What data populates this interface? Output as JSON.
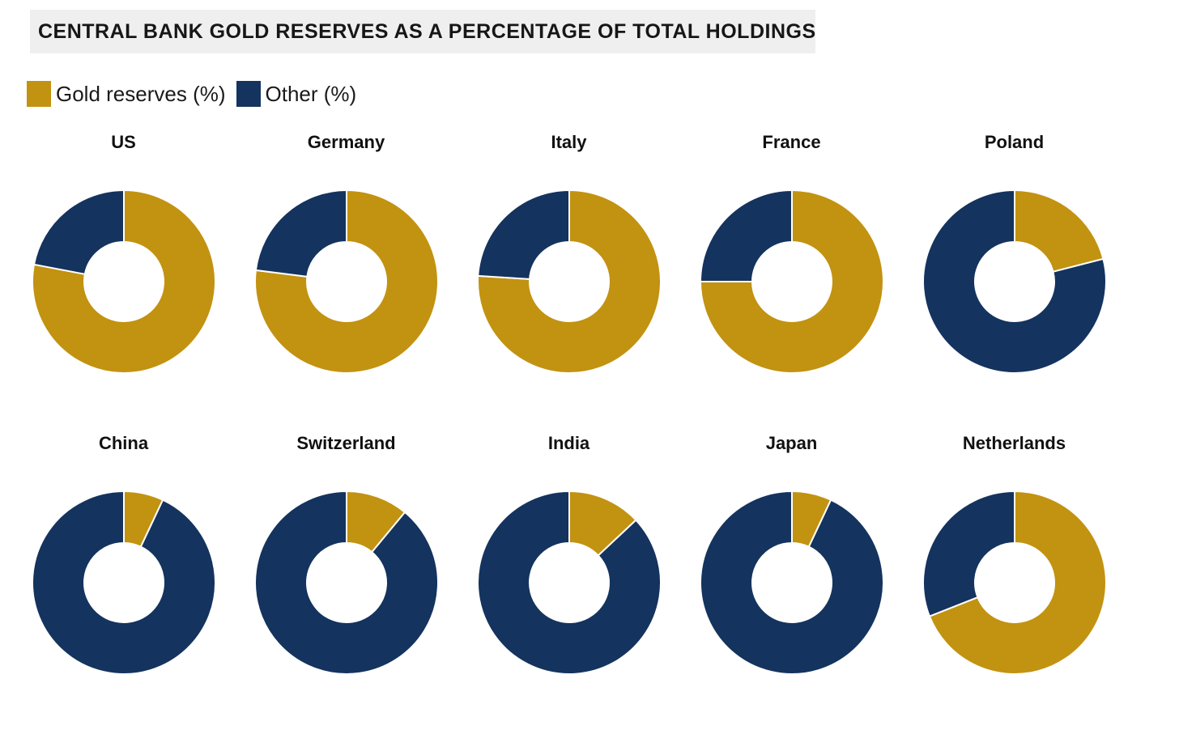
{
  "chart_data": {
    "type": "pie",
    "subtype": "donut-small-multiples",
    "title": "CENTRAL BANK GOLD RESERVES AS A PERCENTAGE OF TOTAL HOLDINGS",
    "legend": [
      {
        "label": "Gold reserves (%)",
        "key": "gold"
      },
      {
        "label": "Other (%)",
        "key": "other"
      }
    ],
    "legend_position": "top-left",
    "unit": "%",
    "grid": {
      "rows": 2,
      "columns": 5
    },
    "countries": [
      {
        "name": "US",
        "gold": 78,
        "other": 22
      },
      {
        "name": "Germany",
        "gold": 77,
        "other": 23
      },
      {
        "name": "Italy",
        "gold": 76,
        "other": 24
      },
      {
        "name": "France",
        "gold": 75,
        "other": 25
      },
      {
        "name": "Poland",
        "gold": 21,
        "other": 79
      },
      {
        "name": "China",
        "gold": 7,
        "other": 93
      },
      {
        "name": "Switzerland",
        "gold": 11,
        "other": 89
      },
      {
        "name": "India",
        "gold": 13,
        "other": 87
      },
      {
        "name": "Japan",
        "gold": 7,
        "other": 93
      },
      {
        "name": "Netherlands",
        "gold": 69,
        "other": 31
      }
    ],
    "colors": {
      "gold": "#C29211",
      "other": "#14335E",
      "title_background": "#EFEFEF",
      "text": "#161616",
      "separator": "#FFFFFF"
    }
  }
}
